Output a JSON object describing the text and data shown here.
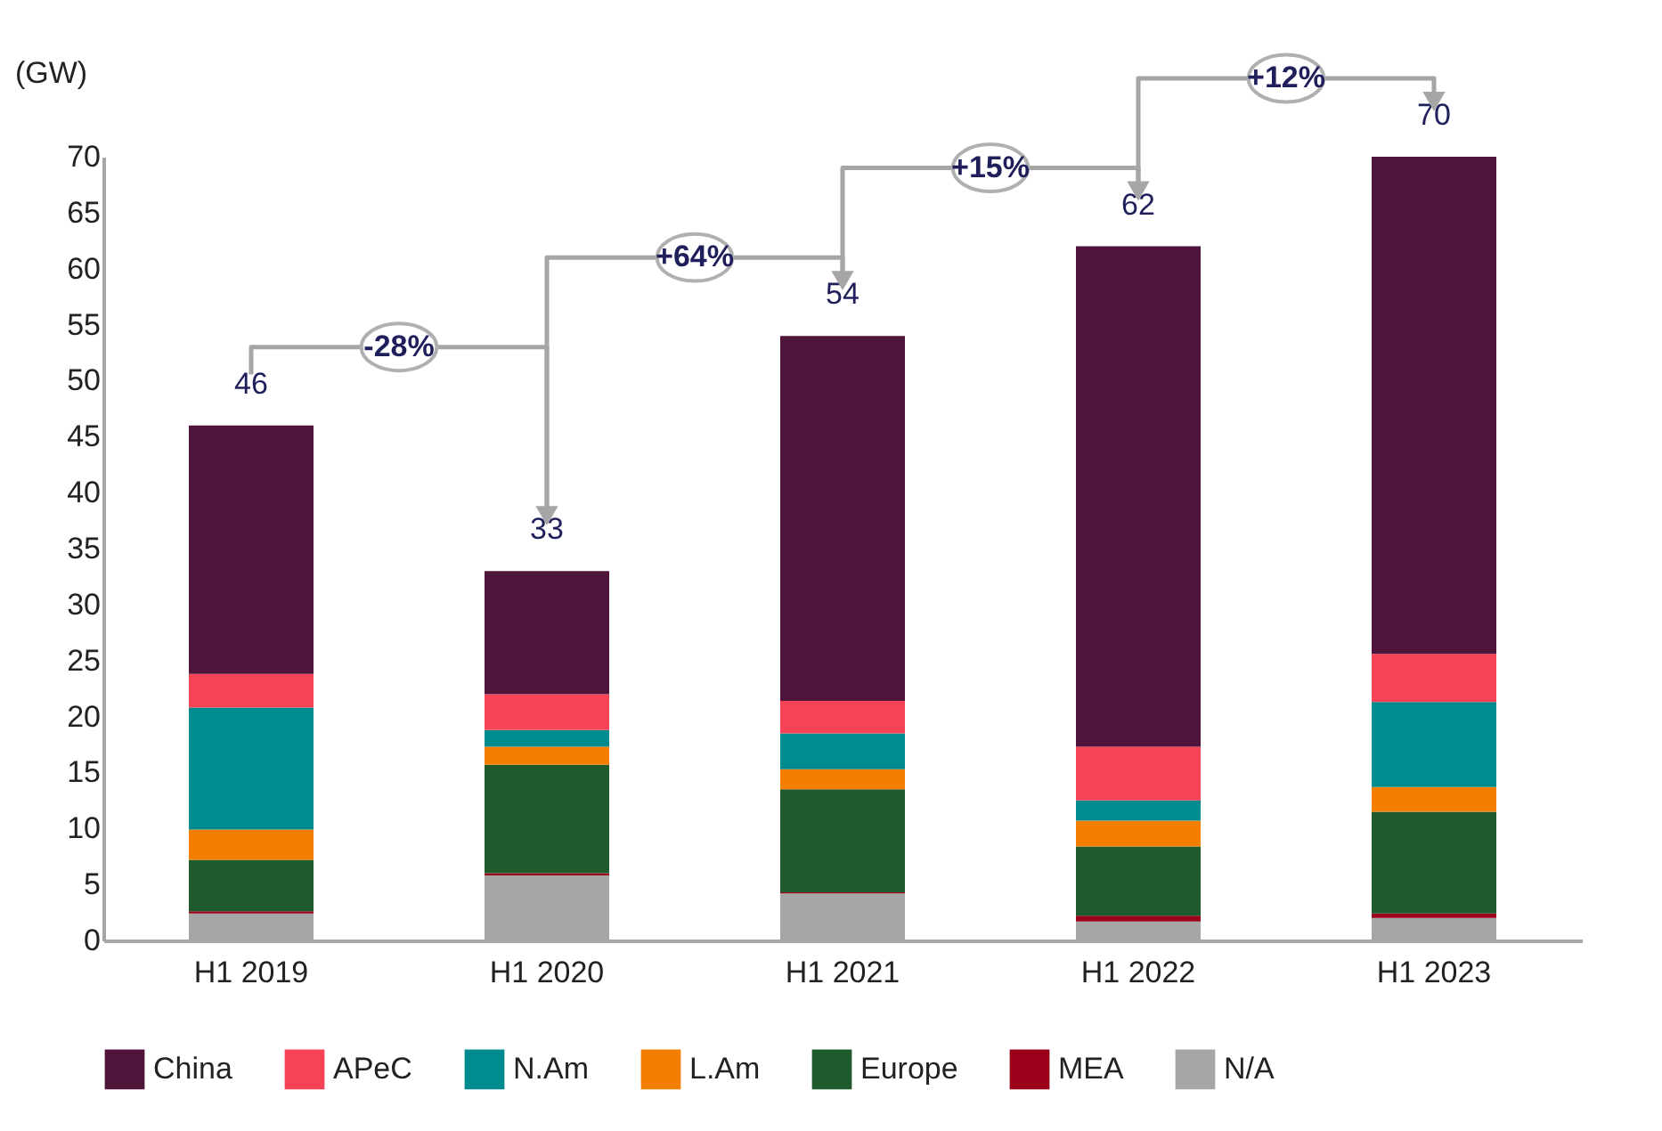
{
  "chart_data": {
    "type": "bar",
    "stacked": true,
    "ylabel": "(GW)",
    "categories": [
      "H1 2019",
      "H1 2020",
      "H1 2021",
      "H1 2022",
      "H1 2023"
    ],
    "series": [
      {
        "name": "N/A",
        "color": "#a6a6a6",
        "values": [
          2.4,
          5.8,
          4.2,
          1.7,
          2.0
        ]
      },
      {
        "name": "MEA",
        "color": "#9a0019",
        "values": [
          0.2,
          0.2,
          0.1,
          0.5,
          0.4
        ]
      },
      {
        "name": "Europe",
        "color": "#1f5a2c",
        "values": [
          4.6,
          9.7,
          9.2,
          6.2,
          9.1
        ]
      },
      {
        "name": "L.Am",
        "color": "#f47e00",
        "values": [
          2.7,
          1.6,
          1.8,
          2.3,
          2.2
        ]
      },
      {
        "name": "N.Am",
        "color": "#008b8f",
        "values": [
          10.9,
          1.5,
          3.2,
          1.8,
          7.6
        ]
      },
      {
        "name": "APeC",
        "color": "#f64456",
        "values": [
          3.0,
          3.2,
          2.9,
          4.8,
          4.3
        ]
      },
      {
        "name": "China",
        "color": "#4e1439",
        "values": [
          22.2,
          11.0,
          32.6,
          44.7,
          44.4
        ]
      }
    ],
    "totals": [
      "46",
      "33",
      "54",
      "62",
      "70"
    ],
    "annotations": [
      "-28%",
      "+64%",
      "+15%",
      "+12%"
    ],
    "ylim": [
      0,
      70
    ],
    "yticks": [
      0,
      5,
      10,
      15,
      20,
      25,
      30,
      35,
      40,
      45,
      50,
      55,
      60,
      65,
      70
    ],
    "grid": false,
    "legend": "bottom"
  }
}
